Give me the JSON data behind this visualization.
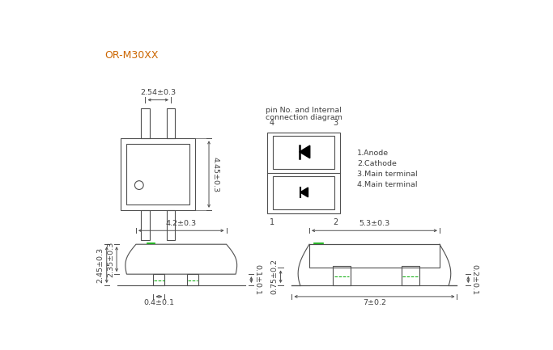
{
  "title": "OR-M30XX",
  "title_color": "#cc6600",
  "bg_color": "#ffffff",
  "line_color": "#505050",
  "dim_color": "#505050",
  "text_color": "#404040",
  "green_color": "#00aa00",
  "legend": [
    "1.Anode",
    "2.Cathode",
    "3.Main terminal",
    "4.Main terminal"
  ]
}
